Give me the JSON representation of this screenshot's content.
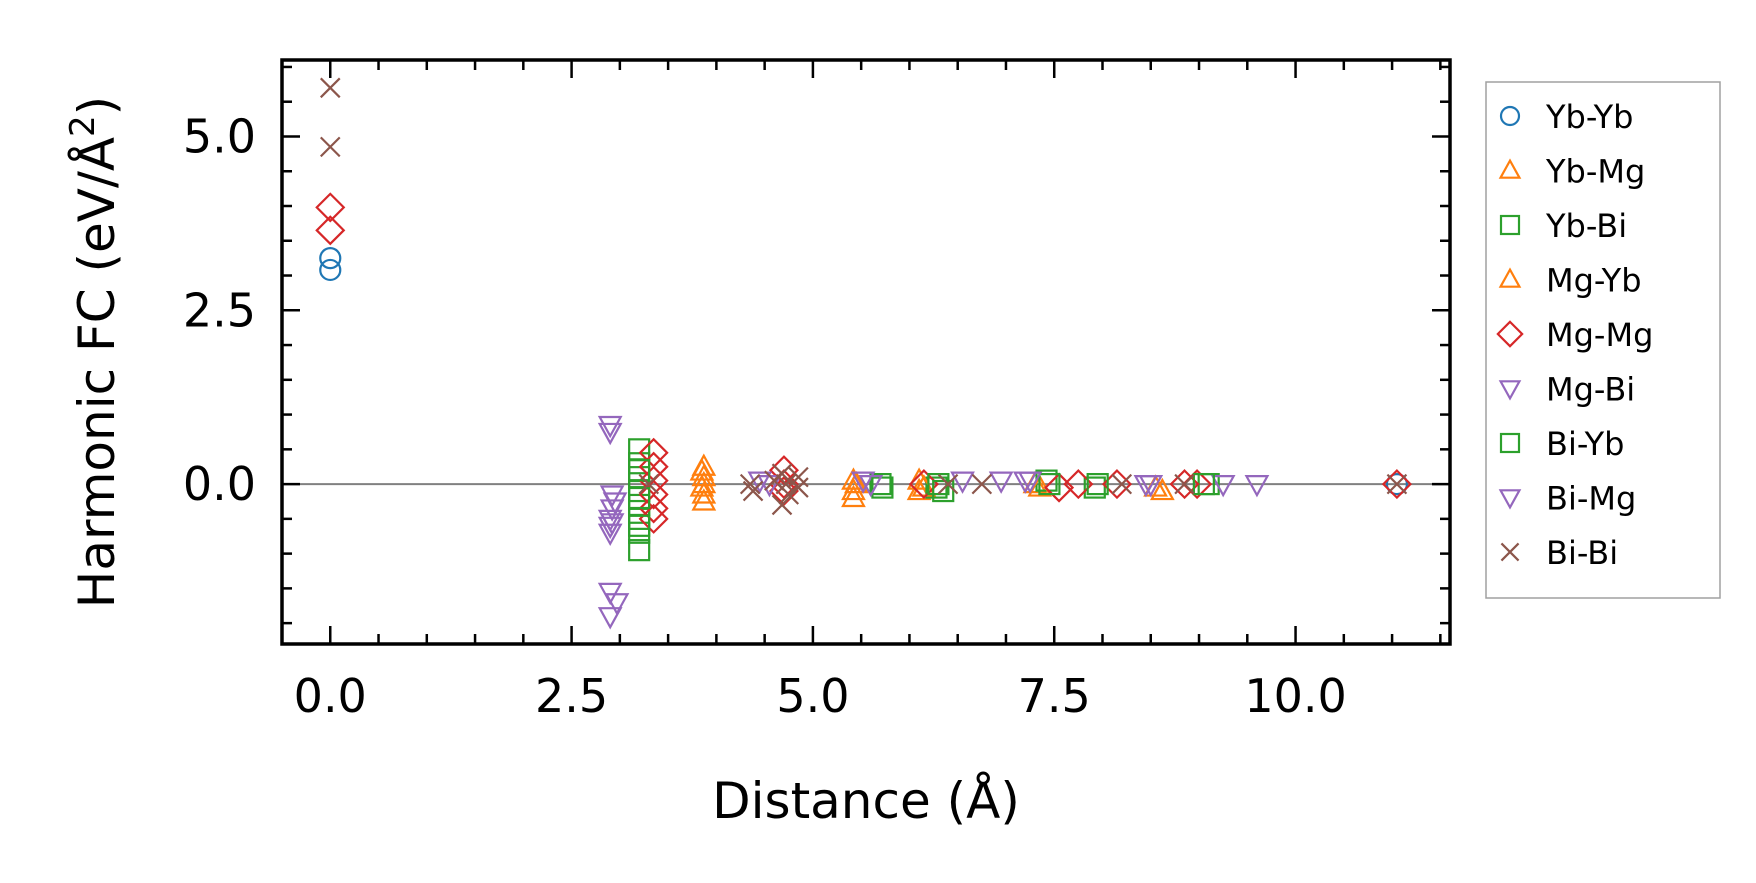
{
  "chart_data": {
    "type": "scatter",
    "title": "",
    "xlabel": "Distance (Å)",
    "ylabel": {
      "text": "Harmonic FC (eV/Å",
      "superscript": "2",
      "suffix": ")"
    },
    "xlim": [
      -0.5,
      11.6
    ],
    "ylim": [
      -2.3,
      6.1
    ],
    "xticks": {
      "values": [
        0.0,
        2.5,
        5.0,
        7.5,
        10.0
      ],
      "labels": [
        "0.0",
        "2.5",
        "5.0",
        "7.5",
        "10.0"
      ]
    },
    "yticks": {
      "values": [
        0.0,
        2.5,
        5.0
      ],
      "labels": [
        "0.0",
        "2.5",
        "5.0"
      ]
    },
    "zero_line": true,
    "grid": false,
    "legend_position": "outside-right",
    "series": [
      {
        "name": "Yb-Yb",
        "marker": "circle",
        "color": "#1f77b4",
        "points": [
          [
            0.0,
            3.25
          ],
          [
            0.0,
            3.08
          ],
          [
            11.05,
            0.0
          ]
        ]
      },
      {
        "name": "Yb-Mg",
        "marker": "triangle-up",
        "color": "#ff7f0e",
        "points": [
          [
            3.87,
            0.25
          ],
          [
            3.87,
            0.1
          ],
          [
            3.87,
            0.0
          ],
          [
            3.87,
            -0.15
          ],
          [
            3.87,
            -0.25
          ],
          [
            5.42,
            0.05
          ],
          [
            5.42,
            -0.1
          ],
          [
            5.42,
            -0.2
          ],
          [
            6.1,
            0.05
          ],
          [
            6.1,
            -0.1
          ],
          [
            7.3,
            0.0
          ],
          [
            8.55,
            -0.05
          ]
        ]
      },
      {
        "name": "Yb-Bi",
        "marker": "square",
        "color": "#2ca02c",
        "points": [
          [
            3.2,
            0.5
          ],
          [
            3.2,
            0.3
          ],
          [
            3.2,
            0.1
          ],
          [
            3.2,
            -0.1
          ],
          [
            3.2,
            -0.3
          ],
          [
            3.2,
            -0.5
          ],
          [
            3.2,
            -0.7
          ],
          [
            3.2,
            -0.95
          ],
          [
            5.7,
            0.0
          ],
          [
            6.28,
            -0.05
          ],
          [
            7.42,
            0.05
          ],
          [
            7.92,
            -0.05
          ],
          [
            9.1,
            0.0
          ]
        ]
      },
      {
        "name": "Mg-Yb",
        "marker": "triangle-up",
        "color": "#ff7f0e",
        "points": [
          [
            3.85,
            0.18
          ],
          [
            3.85,
            -0.05
          ],
          [
            5.45,
            0.0
          ],
          [
            6.15,
            -0.05
          ],
          [
            7.35,
            -0.05
          ],
          [
            8.62,
            -0.1
          ]
        ]
      },
      {
        "name": "Mg-Mg",
        "marker": "diamond",
        "color": "#d62728",
        "points": [
          [
            0.0,
            3.98
          ],
          [
            0.0,
            3.65
          ],
          [
            3.35,
            0.45
          ],
          [
            3.35,
            0.25
          ],
          [
            3.35,
            0.05
          ],
          [
            3.35,
            -0.15
          ],
          [
            3.35,
            -0.35
          ],
          [
            3.35,
            -0.5
          ],
          [
            4.7,
            0.2
          ],
          [
            4.7,
            0.0
          ],
          [
            4.7,
            -0.1
          ],
          [
            6.15,
            0.0
          ],
          [
            7.55,
            -0.05
          ],
          [
            7.75,
            0.0
          ],
          [
            8.15,
            0.0
          ],
          [
            8.85,
            0.0
          ],
          [
            8.98,
            0.0
          ],
          [
            11.05,
            0.0
          ]
        ]
      },
      {
        "name": "Mg-Bi",
        "marker": "triangle-down",
        "color": "#9467bd",
        "points": [
          [
            2.9,
            0.85
          ],
          [
            2.9,
            0.75
          ],
          [
            2.9,
            -0.5
          ],
          [
            2.9,
            -0.6
          ],
          [
            2.9,
            -0.7
          ],
          [
            2.9,
            -1.55
          ],
          [
            2.9,
            -1.9
          ],
          [
            2.97,
            -1.7
          ],
          [
            5.52,
            0.05
          ],
          [
            6.55,
            0.05
          ],
          [
            7.2,
            0.05
          ],
          [
            8.45,
            0.0
          ],
          [
            9.25,
            0.0
          ]
        ]
      },
      {
        "name": "Bi-Yb",
        "marker": "square",
        "color": "#2ca02c",
        "points": [
          [
            3.2,
            0.2
          ],
          [
            3.2,
            -0.2
          ],
          [
            3.2,
            -0.6
          ],
          [
            5.72,
            -0.05
          ],
          [
            6.3,
            0.0
          ],
          [
            6.35,
            -0.1
          ],
          [
            7.45,
            0.0
          ],
          [
            7.95,
            0.0
          ],
          [
            9.05,
            0.0
          ]
        ]
      },
      {
        "name": "Bi-Mg",
        "marker": "triangle-down",
        "color": "#9467bd",
        "points": [
          [
            2.92,
            -0.15
          ],
          [
            2.92,
            -0.35
          ],
          [
            2.92,
            -0.55
          ],
          [
            2.95,
            -0.25
          ],
          [
            4.45,
            0.05
          ],
          [
            4.55,
            0.0
          ],
          [
            5.6,
            0.0
          ],
          [
            6.95,
            0.05
          ],
          [
            7.25,
            0.05
          ],
          [
            8.5,
            0.0
          ],
          [
            9.6,
            0.0
          ]
        ]
      },
      {
        "name": "Bi-Bi",
        "marker": "x",
        "color": "#8c564b",
        "points": [
          [
            0.0,
            5.7
          ],
          [
            0.0,
            4.85
          ],
          [
            3.3,
            0.0
          ],
          [
            4.35,
            0.0
          ],
          [
            4.38,
            -0.1
          ],
          [
            4.6,
            0.05
          ],
          [
            4.68,
            0.15
          ],
          [
            4.68,
            -0.3
          ],
          [
            4.72,
            0.0
          ],
          [
            4.75,
            -0.15
          ],
          [
            4.85,
            0.1
          ],
          [
            4.85,
            -0.05
          ],
          [
            6.4,
            0.0
          ],
          [
            6.75,
            0.0
          ],
          [
            8.2,
            0.0
          ],
          [
            8.85,
            0.0
          ],
          [
            11.05,
            0.0
          ]
        ]
      }
    ]
  }
}
